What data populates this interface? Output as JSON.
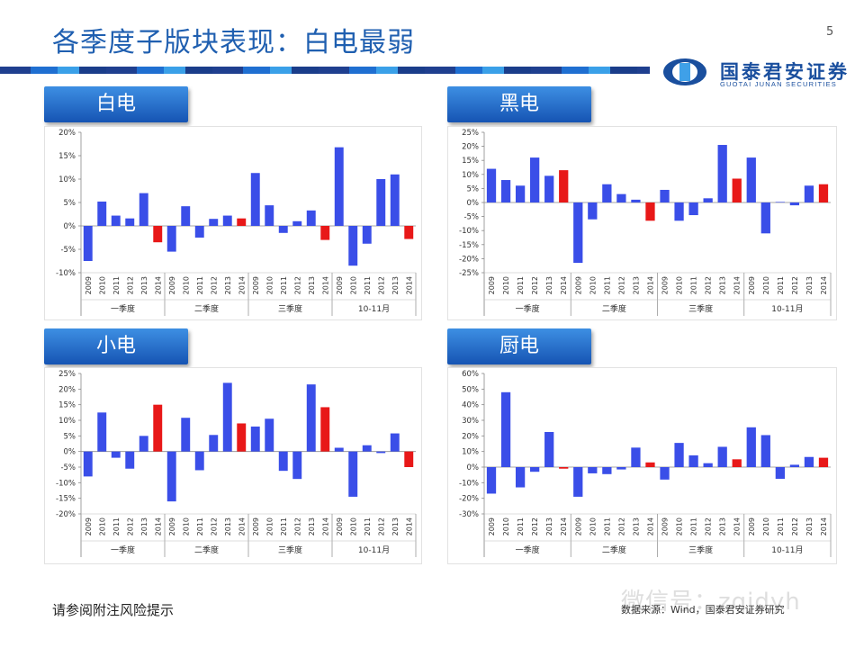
{
  "header": {
    "title": "各季度子版块表现：白电最弱",
    "page_number": "5",
    "logo_cn": "国泰君安证券",
    "logo_en": "GUOTAI JUNAN SECURITIES"
  },
  "colors": {
    "positive": "#3a4ee8",
    "highlight": "#e81818",
    "title": "#1f5fb0"
  },
  "footer": {
    "note": "请参阅附注风险提示",
    "source": "数据来源：Wind，国泰君安证券研究",
    "watermark": "微信号：zqjdyh"
  },
  "chart_data": [
    {
      "type": "bar",
      "title": "白电",
      "ylim": [
        -10,
        20
      ],
      "yticks": [
        -10,
        -5,
        0,
        5,
        10,
        15,
        20
      ],
      "groups": [
        "一季度",
        "二季度",
        "三季度",
        "10-11月"
      ],
      "years": [
        "2009",
        "2010",
        "2011",
        "2012",
        "2013",
        "2014"
      ],
      "values": [
        -7.5,
        5.2,
        2.2,
        1.6,
        7.0,
        -3.5,
        -5.5,
        4.2,
        -2.5,
        1.5,
        2.2,
        1.6,
        11.3,
        4.4,
        -1.5,
        1.0,
        3.3,
        -3.0,
        16.8,
        -8.5,
        -3.8,
        10.0,
        11.0,
        -2.8
      ],
      "highlight": [
        5,
        11,
        17,
        23
      ]
    },
    {
      "type": "bar",
      "title": "黑电",
      "ylim": [
        -25,
        25
      ],
      "yticks": [
        -25,
        -20,
        -15,
        -10,
        -5,
        0,
        5,
        10,
        15,
        20,
        25
      ],
      "groups": [
        "一季度",
        "二季度",
        "三季度",
        "10-11月"
      ],
      "years": [
        "2009",
        "2010",
        "2011",
        "2012",
        "2013",
        "2014"
      ],
      "values": [
        12.0,
        8.0,
        6.0,
        16.0,
        9.5,
        11.5,
        -21.5,
        -6.0,
        6.5,
        3.0,
        1.0,
        -6.5,
        4.5,
        -6.5,
        -4.5,
        1.5,
        20.5,
        8.5,
        16.0,
        -11.0,
        0.2,
        -1.0,
        6.0,
        6.5
      ],
      "highlight": [
        5,
        11,
        17,
        23
      ]
    },
    {
      "type": "bar",
      "title": "小电",
      "ylim": [
        -20,
        25
      ],
      "yticks": [
        -20,
        -15,
        -10,
        -5,
        0,
        5,
        10,
        15,
        20,
        25
      ],
      "groups": [
        "一季度",
        "二季度",
        "三季度",
        "10-11月"
      ],
      "years": [
        "2009",
        "2010",
        "2011",
        "2012",
        "2013",
        "2014"
      ],
      "values": [
        -8.0,
        12.5,
        -2.0,
        -5.5,
        5.0,
        15.0,
        -16.0,
        10.8,
        -6.0,
        5.3,
        22.0,
        9.0,
        8.0,
        10.5,
        -6.2,
        -8.8,
        21.5,
        14.2,
        1.2,
        -14.5,
        2.0,
        -0.5,
        5.8,
        -5.0
      ],
      "highlight": [
        5,
        11,
        17,
        23
      ]
    },
    {
      "type": "bar",
      "title": "厨电",
      "ylim": [
        -30,
        60
      ],
      "yticks": [
        -30,
        -20,
        -10,
        0,
        10,
        20,
        30,
        40,
        50,
        60
      ],
      "groups": [
        "一季度",
        "二季度",
        "三季度",
        "10-11月"
      ],
      "years": [
        "2009",
        "2010",
        "2011",
        "2012",
        "2013",
        "2014"
      ],
      "values": [
        -17.0,
        48.0,
        -13.0,
        -3.0,
        22.5,
        -1.0,
        -19.0,
        -4.0,
        -4.5,
        -1.5,
        12.5,
        3.0,
        -8.0,
        15.5,
        7.5,
        2.5,
        13.0,
        5.0,
        25.5,
        20.5,
        -7.5,
        1.5,
        6.5,
        6.0
      ],
      "highlight": [
        5,
        11,
        17,
        23
      ]
    }
  ]
}
